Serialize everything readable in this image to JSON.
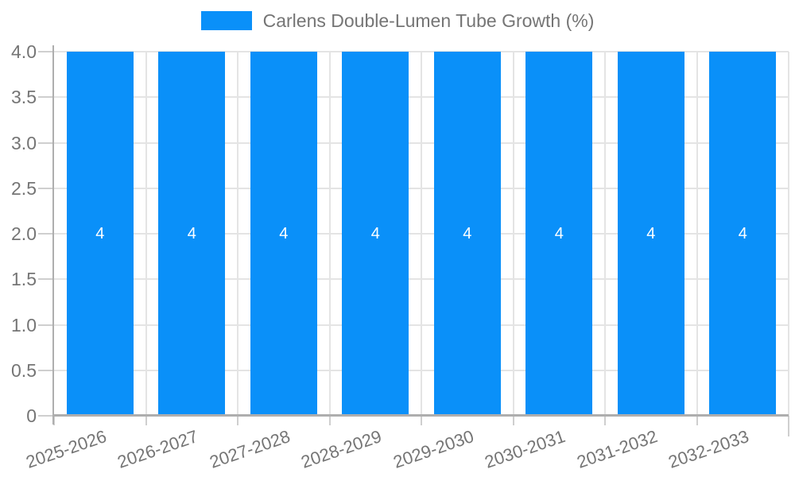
{
  "chart_data": {
    "type": "bar",
    "title": "Carlens Double-Lumen Tube Growth (%)",
    "legend_label": "Carlens Double-Lumen Tube Growth (%)",
    "legend_position": "top-center",
    "categories": [
      "2025-2026",
      "2026-2027",
      "2027-2028",
      "2028-2029",
      "2029-2030",
      "2030-2031",
      "2031-2032",
      "2032-2033"
    ],
    "values": [
      4,
      4,
      4,
      4,
      4,
      4,
      4,
      4
    ],
    "value_labels": [
      "4",
      "4",
      "4",
      "4",
      "4",
      "4",
      "4",
      "4"
    ],
    "xlabel": "",
    "ylabel": "",
    "ylim": [
      0,
      4
    ],
    "yticks": [
      0,
      0.5,
      1,
      1.5,
      2,
      2.5,
      3,
      3.5,
      4
    ],
    "ytick_labels": [
      "0",
      "0.5",
      "1.0",
      "1.5",
      "2.0",
      "2.5",
      "3.0",
      "3.5",
      "4.0"
    ],
    "grid": true,
    "x_tick_rotation_deg": -19,
    "bar_color": "#0a90f9",
    "bar_label_color": "#ffffff",
    "axis_text_color": "#757575",
    "gridline_color": "#e4e4e4",
    "tick_color": "#cfcfcf",
    "axis_line_color": "#aeaeae"
  }
}
